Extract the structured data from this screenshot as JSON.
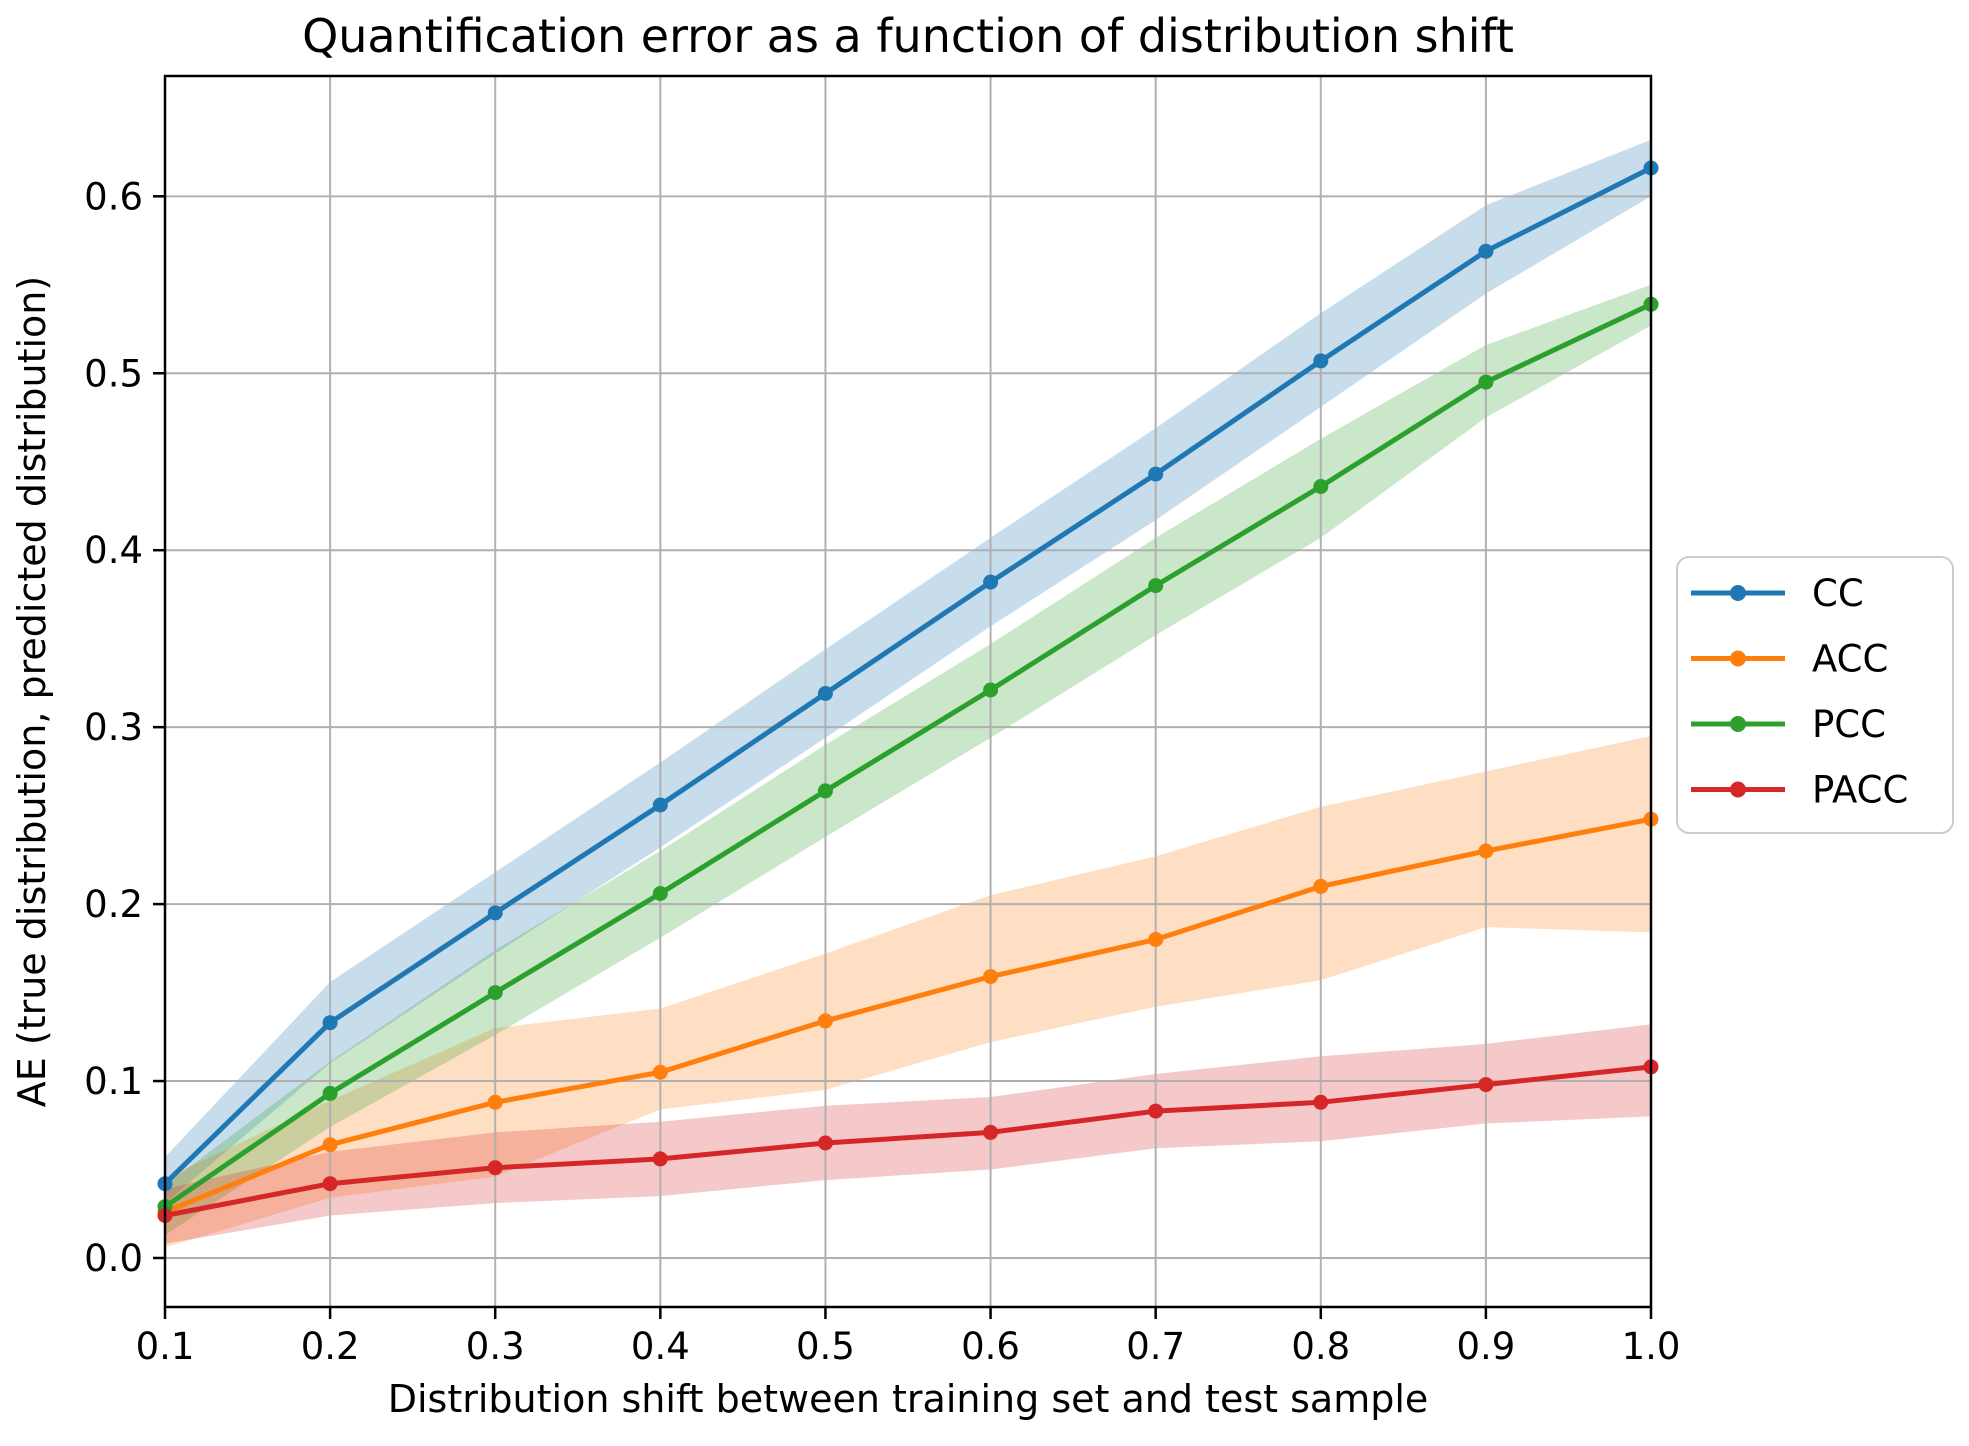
{
  "chart_data": {
    "type": "line",
    "title": "Quantification error as a function of distribution shift",
    "xlabel": "Distribution shift between training set and test sample",
    "ylabel": "AE (true distribution, predicted distribution)",
    "x": [
      0.1,
      0.2,
      0.3,
      0.4,
      0.5,
      0.6,
      0.7,
      0.8,
      0.9,
      1.0
    ],
    "xtick_labels": [
      "0.1",
      "0.2",
      "0.3",
      "0.4",
      "0.5",
      "0.6",
      "0.7",
      "0.8",
      "0.9",
      "1.0"
    ],
    "yticks": [
      0.0,
      0.1,
      0.2,
      0.3,
      0.4,
      0.5,
      0.6
    ],
    "ytick_labels": [
      "0.0",
      "0.1",
      "0.2",
      "0.3",
      "0.4",
      "0.5",
      "0.6"
    ],
    "xlim": [
      0.1,
      1.0
    ],
    "ylim": [
      -0.0277,
      0.668
    ],
    "grid": true,
    "grid_color": "#b0b0b0",
    "spine_color": "#000000",
    "band_opacity": 0.25,
    "marker": "circle",
    "legend_position": "outside-right",
    "series": [
      {
        "name": "CC",
        "color": "#1f77b4",
        "values": [
          0.042,
          0.133,
          0.195,
          0.256,
          0.319,
          0.382,
          0.443,
          0.507,
          0.569,
          0.616
        ],
        "band_upper": [
          0.057,
          0.156,
          0.218,
          0.28,
          0.344,
          0.407,
          0.469,
          0.534,
          0.595,
          0.632
        ],
        "band_lower": [
          0.031,
          0.11,
          0.172,
          0.232,
          0.294,
          0.357,
          0.417,
          0.481,
          0.545,
          0.6
        ]
      },
      {
        "name": "ACC",
        "color": "#ff7f0e",
        "values": [
          0.026,
          0.064,
          0.088,
          0.105,
          0.134,
          0.159,
          0.18,
          0.21,
          0.23,
          0.248
        ],
        "band_upper": [
          0.045,
          0.089,
          0.13,
          0.141,
          0.172,
          0.205,
          0.227,
          0.255,
          0.275,
          0.295
        ],
        "band_lower": [
          0.006,
          0.034,
          0.046,
          0.084,
          0.095,
          0.122,
          0.142,
          0.157,
          0.187,
          0.184
        ]
      },
      {
        "name": "PCC",
        "color": "#2ca02c",
        "values": [
          0.029,
          0.093,
          0.15,
          0.206,
          0.264,
          0.321,
          0.38,
          0.436,
          0.495,
          0.539
        ],
        "band_upper": [
          0.041,
          0.111,
          0.174,
          0.23,
          0.29,
          0.347,
          0.407,
          0.463,
          0.516,
          0.55
        ],
        "band_lower": [
          0.013,
          0.074,
          0.126,
          0.181,
          0.238,
          0.294,
          0.352,
          0.407,
          0.475,
          0.527
        ]
      },
      {
        "name": "PACC",
        "color": "#d62728",
        "values": [
          0.024,
          0.042,
          0.051,
          0.056,
          0.065,
          0.071,
          0.083,
          0.088,
          0.098,
          0.108
        ],
        "band_upper": [
          0.039,
          0.06,
          0.071,
          0.077,
          0.086,
          0.091,
          0.104,
          0.114,
          0.121,
          0.132
        ],
        "band_lower": [
          0.008,
          0.024,
          0.031,
          0.035,
          0.044,
          0.05,
          0.062,
          0.066,
          0.076,
          0.08
        ]
      }
    ],
    "legend_labels": [
      "CC",
      "ACC",
      "PCC",
      "PACC"
    ]
  }
}
